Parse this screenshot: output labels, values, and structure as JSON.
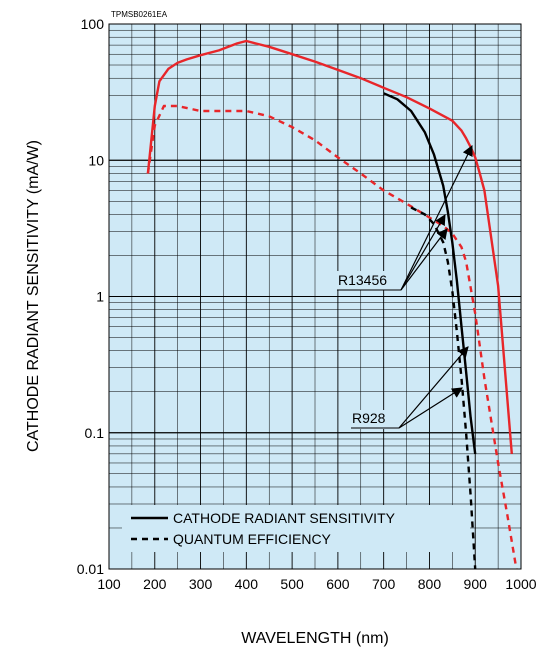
{
  "figure_code": "TPMSB0261EA",
  "colors": {
    "plot_bg": "#cfe9f6",
    "grid": "#000000",
    "red": "#e8262a",
    "black": "#000000"
  },
  "chart_data": {
    "type": "line",
    "xlabel": "WAVELENGTH (nm)",
    "ylabel": "CATHODE RADIANT SENSITIVITY (mA/W)",
    "xlim": [
      100,
      1000
    ],
    "ylim": [
      0.01,
      100
    ],
    "yscale": "log",
    "grid": true,
    "x_ticks": [
      100,
      200,
      300,
      400,
      500,
      600,
      700,
      800,
      900,
      1000
    ],
    "x_tick_labels": [
      "100",
      "200",
      "300",
      "400",
      "500",
      "600",
      "700",
      "800",
      "900",
      "1000"
    ],
    "y_ticks": [
      0.01,
      0.1,
      1,
      10,
      100
    ],
    "y_tick_labels": [
      "0.01",
      "0.1",
      "1",
      "10",
      "100"
    ],
    "legend": {
      "position": "bottom-left",
      "entries": [
        {
          "label": "CATHODE RADIANT SENSITIVITY",
          "style": "solid"
        },
        {
          "label": "QUANTUM EFFICIENCY",
          "style": "dashed"
        }
      ]
    },
    "annotations": [
      {
        "label": "R13456",
        "color": "red"
      },
      {
        "label": "R928",
        "color": "black"
      }
    ],
    "series": [
      {
        "name": "R13456",
        "kind": "CATHODE RADIANT SENSITIVITY",
        "color": "red",
        "style": "solid",
        "x": [
          185,
          200,
          210,
          230,
          250,
          270,
          300,
          340,
          380,
          400,
          420,
          450,
          500,
          550,
          600,
          650,
          700,
          750,
          800,
          850,
          870,
          880,
          890,
          900,
          910,
          920,
          950,
          980
        ],
        "y": [
          8,
          25,
          38,
          47,
          52,
          55,
          59,
          64,
          72,
          75,
          72,
          68,
          60,
          53,
          46,
          40,
          34,
          29,
          24,
          19.5,
          16.5,
          14.5,
          12.5,
          10.5,
          8,
          6,
          1.2,
          0.07
        ]
      },
      {
        "name": "R13456",
        "kind": "QUANTUM EFFICIENCY",
        "color": "red",
        "style": "dashed",
        "x": [
          185,
          200,
          220,
          250,
          300,
          350,
          400,
          450,
          500,
          550,
          600,
          650,
          700,
          750,
          800,
          830,
          850,
          870,
          880,
          900,
          920,
          950,
          970,
          990
        ],
        "y": [
          8,
          18,
          25,
          25,
          23,
          23,
          23,
          21,
          17.5,
          14,
          10.5,
          8,
          6,
          4.8,
          3.8,
          3.3,
          2.9,
          2.3,
          1.8,
          0.75,
          0.25,
          0.06,
          0.025,
          0.01
        ]
      },
      {
        "name": "R928",
        "kind": "CATHODE RADIANT SENSITIVITY",
        "color": "black",
        "style": "solid",
        "x": [
          700,
          730,
          760,
          790,
          810,
          830,
          840,
          850,
          860,
          870,
          880,
          890,
          900
        ],
        "y": [
          31,
          28,
          23,
          16,
          11,
          6.5,
          4.2,
          2.5,
          1.3,
          0.6,
          0.28,
          0.13,
          0.07
        ]
      },
      {
        "name": "R928",
        "kind": "QUANTUM EFFICIENCY",
        "color": "black",
        "style": "dashed",
        "x": [
          760,
          790,
          810,
          830,
          840,
          850,
          860,
          870,
          880,
          890,
          900
        ],
        "y": [
          4.5,
          4,
          3.4,
          2.5,
          1.8,
          1.1,
          0.55,
          0.25,
          0.1,
          0.035,
          0.01
        ]
      }
    ]
  }
}
